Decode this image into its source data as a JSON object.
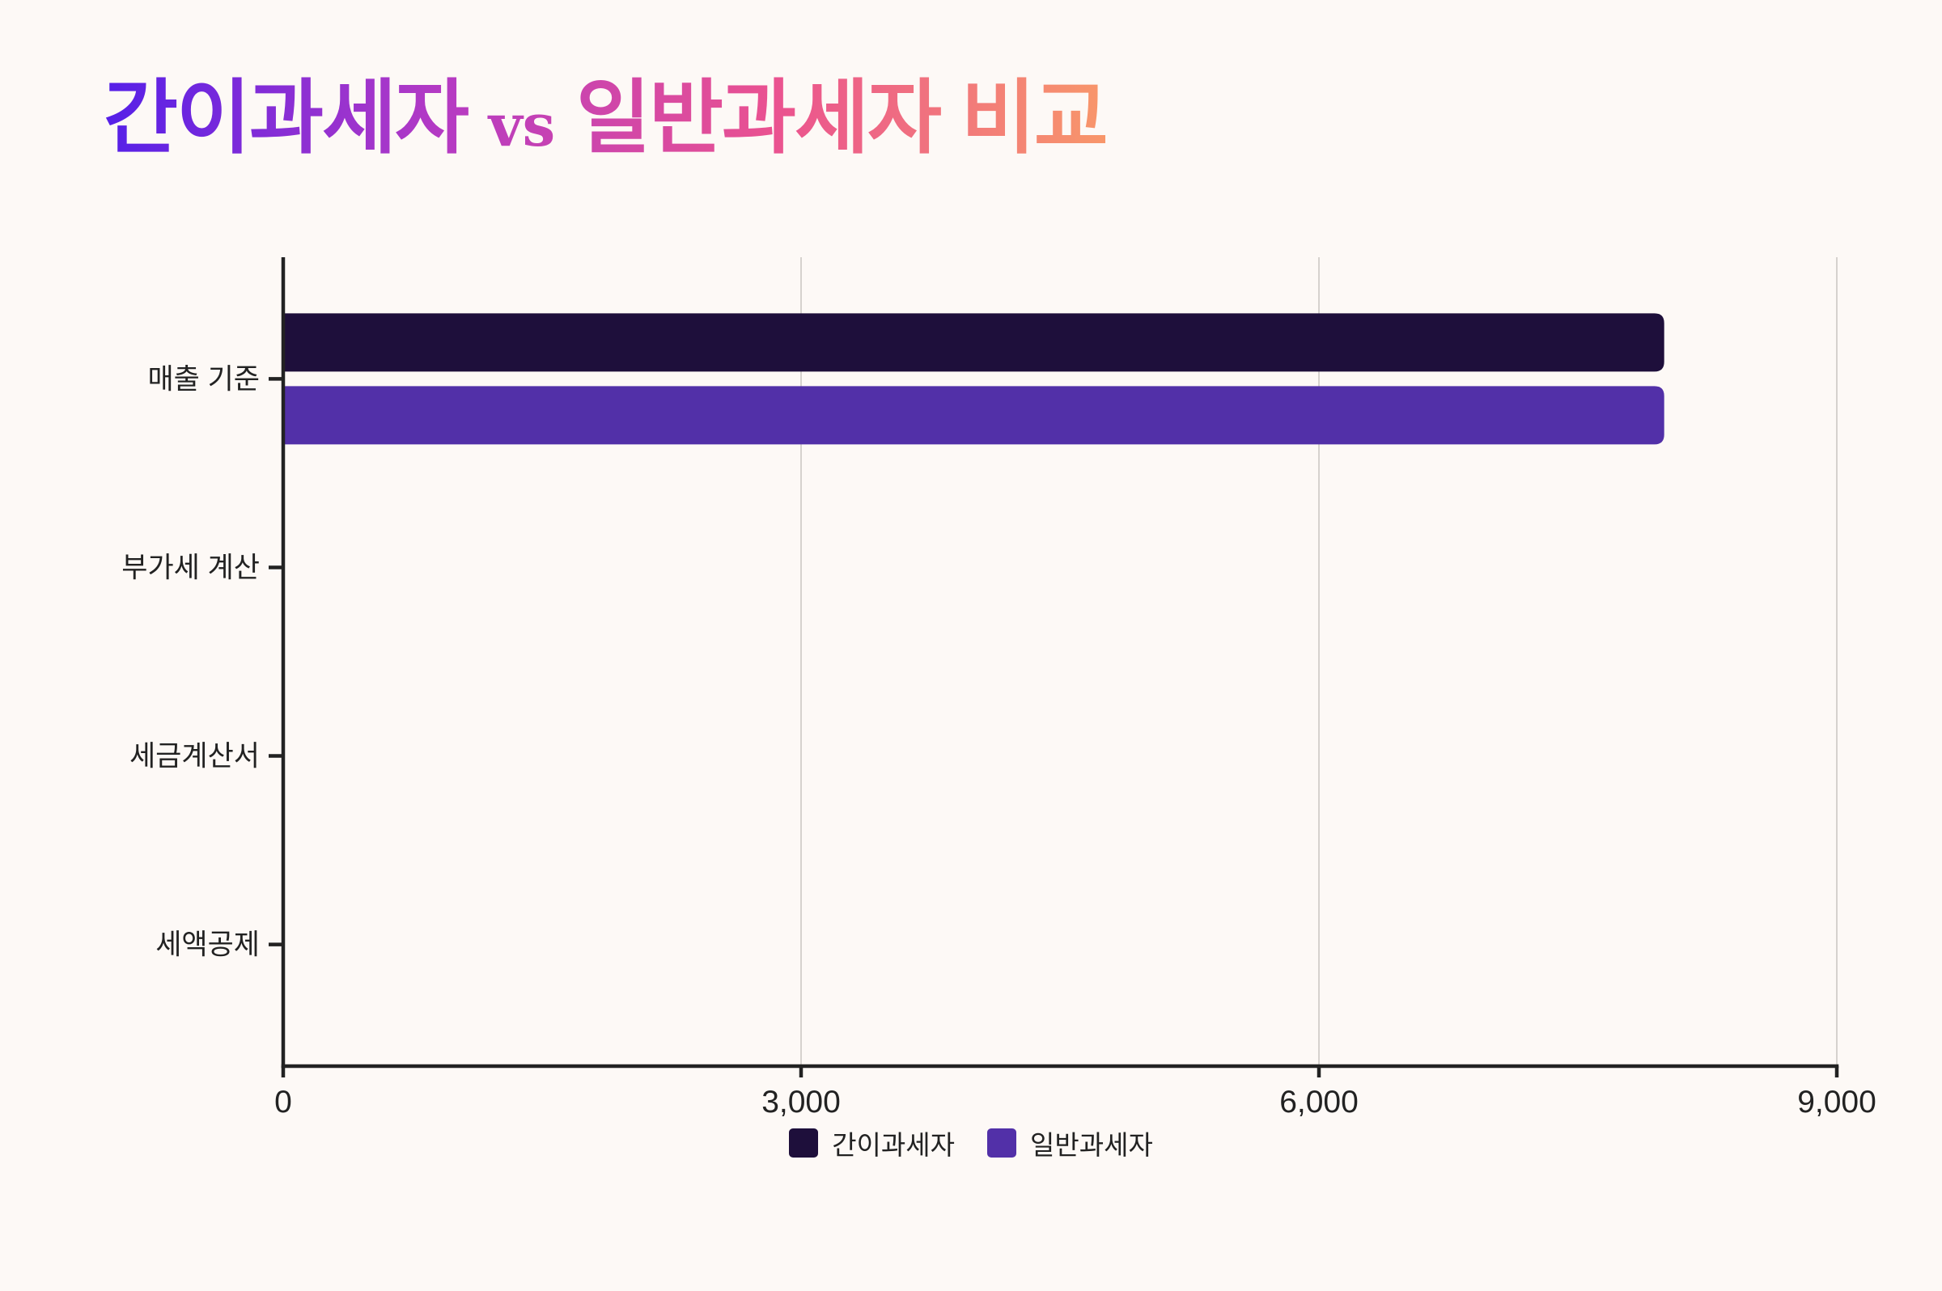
{
  "page": {
    "background": "#fdf9f6",
    "text_color": "#222222"
  },
  "chart_data": {
    "type": "bar",
    "orientation": "horizontal",
    "title": {
      "lead": "간이과세자",
      "vs": "vs",
      "tail": "일반과세자 비교",
      "gradient": [
        "#5520e8",
        "#b43ac4",
        "#ea5290",
        "#f8976a"
      ]
    },
    "categories": [
      "매출 기준",
      "부가세 계산",
      "세금계산서",
      "세액공제"
    ],
    "series": [
      {
        "name": "간이과세자",
        "values": [
          8000,
          0,
          0,
          0
        ],
        "color": "#1e0f3b"
      },
      {
        "name": "일반과세자",
        "values": [
          8000,
          0,
          0,
          0
        ],
        "color": "#5230a8"
      }
    ],
    "xlim": [
      0,
      9000
    ],
    "xticks": [
      0,
      3000,
      6000,
      9000
    ],
    "xtick_labels": [
      "0",
      "3,000",
      "6,000",
      "9,000"
    ],
    "grid": "x",
    "grid_color": "#d6d2ce",
    "axis_color": "#222222",
    "legend": "bottom-center"
  }
}
